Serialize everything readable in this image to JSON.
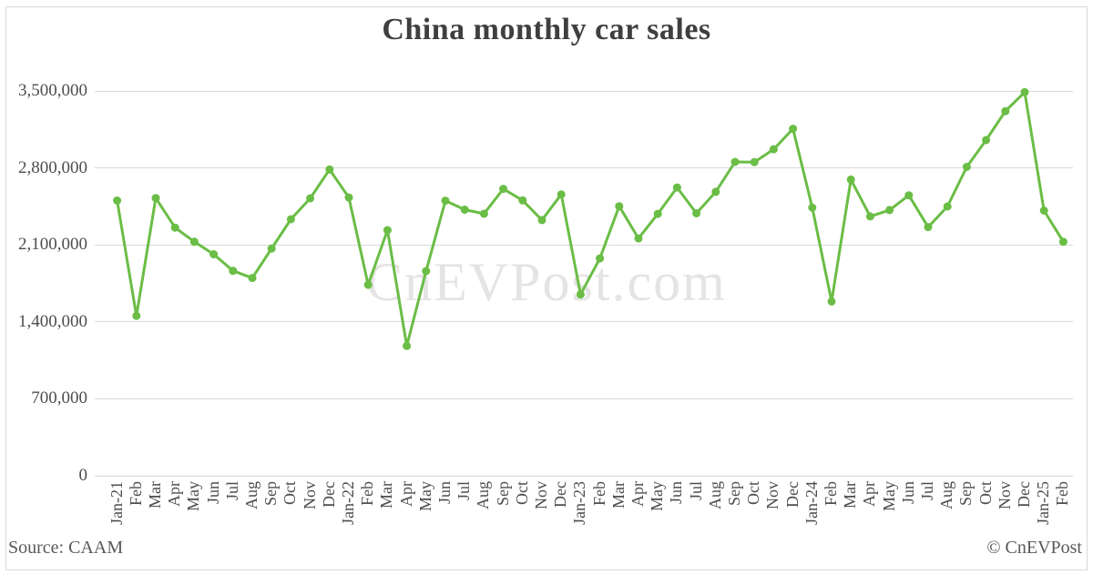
{
  "page": {
    "title": "China monthly car sales",
    "source_label": "Source: CAAM",
    "copyright_label": "© CnEVPost",
    "watermark": "CnEVPost.com"
  },
  "colors": {
    "line": "#6abd45",
    "marker": "#6abd45",
    "grid": "#d9d9d9",
    "title_text": "#3f3f3f",
    "axis_text": "#4d4d4d",
    "watermark_text": "#e4e4e4",
    "border": "#d9d9d9"
  },
  "chart_data": {
    "type": "line",
    "title": "China monthly car sales",
    "xlabel": "",
    "ylabel": "",
    "legend": "none",
    "grid": "horizontal",
    "marker": "circle",
    "ylim": [
      0,
      3500000
    ],
    "y_ticks": [
      0,
      700000,
      1400000,
      2100000,
      2800000,
      3500000
    ],
    "y_tick_labels": [
      "0",
      "700,000",
      "1,400,000",
      "2,100,000",
      "2,800,000",
      "3,500,000"
    ],
    "categories": [
      "Jan-21",
      "Feb",
      "Mar",
      "Apr",
      "May",
      "Jun",
      "Jul",
      "Aug",
      "Sep",
      "Oct",
      "Nov",
      "Dec",
      "Jan-22",
      "Feb",
      "Mar",
      "Apr",
      "May",
      "Jun",
      "Jul",
      "Aug",
      "Sep",
      "Oct",
      "Nov",
      "Dec",
      "Jan-23",
      "Feb",
      "Mar",
      "Apr",
      "May",
      "Jun",
      "Jul",
      "Aug",
      "Sep",
      "Oct",
      "Nov",
      "Dec",
      "Jan-24",
      "Feb",
      "Mar",
      "Apr",
      "May",
      "Jun",
      "Jul",
      "Aug",
      "Sep",
      "Oct",
      "Nov",
      "Dec",
      "Jan-25",
      "Feb"
    ],
    "series": [
      {
        "name": "China monthly car sales",
        "values": [
          2503000,
          1455000,
          2526000,
          2257000,
          2128000,
          2015000,
          1864000,
          1799000,
          2067000,
          2333000,
          2524000,
          2786000,
          2531000,
          1737000,
          2234000,
          1181000,
          1862000,
          2502000,
          2420000,
          2383000,
          2610000,
          2505000,
          2326000,
          2559000,
          1649000,
          1977000,
          2452000,
          2159000,
          2382000,
          2622000,
          2387000,
          2582000,
          2855000,
          2853000,
          2970000,
          3156000,
          2439000,
          1585000,
          2694000,
          2359000,
          2417000,
          2551000,
          2262000,
          2449000,
          2809000,
          3053000,
          3316000,
          3489000,
          2412000,
          2129000
        ]
      }
    ]
  }
}
